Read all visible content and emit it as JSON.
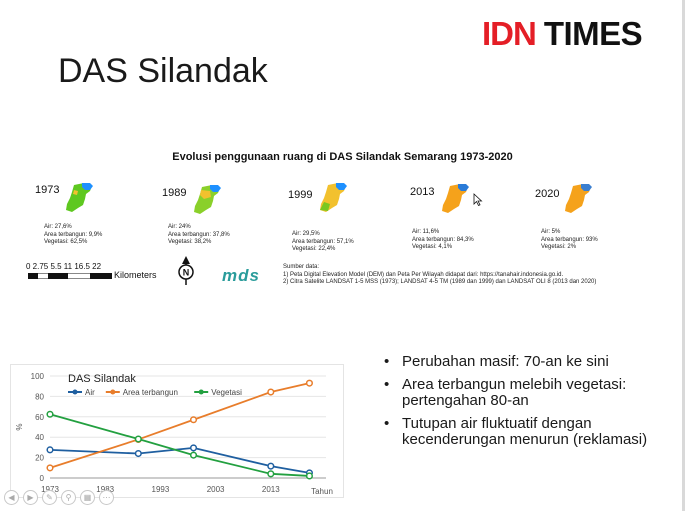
{
  "logo": {
    "part1": "IDN",
    "part2": "TIMES",
    "color": "#e41e26"
  },
  "slide_title": "DAS Silandak",
  "map_panel": {
    "title": "Evolusi penggunaan ruang di DAS Silandak Semarang 1973-2020",
    "maps": [
      {
        "year": "1973",
        "air": "Air: 27,6%",
        "built": "Area terbangun: 9,9%",
        "veg": "Vegetasi: 62,5%"
      },
      {
        "year": "1989",
        "air": "Air: 24%",
        "built": "Area terbangun: 37,8%",
        "veg": "Vegetasi: 38,2%"
      },
      {
        "year": "1999",
        "air": "Air: 29,5%",
        "built": "Area terbangun: 57,1%",
        "veg": "Vegetasi: 22,4%"
      },
      {
        "year": "2013",
        "air": "Air: 11,6%",
        "built": "Area terbangun: 84,3%",
        "veg": "Vegetasi: 4,1%"
      },
      {
        "year": "2020",
        "air": "Air: 5%",
        "built": "Area terbangun: 93%",
        "veg": "Vegetasi: 2%"
      }
    ],
    "scale_ticks": "0 2.75 5.5     11     16.5    22",
    "scale_unit": "Kilometers",
    "north_label": "N",
    "mds_logo": "mds",
    "sources_heading": "Sumber data:",
    "source_1": "1) Peta Digital Elevation Model (DEM) dan Peta Per Wilayah didapat dari: https://tanahair.indonesia.go.id.",
    "source_2": "2) Citra Satelite LANDSAT 1-5 MSS (1973); LANDSAT 4-5 TM (1989 dan 1999) dan LANDSAT OLI 8 (2013 dan 2020)"
  },
  "bullets": [
    "Perubahan masif: 70-an ke sini",
    "Area terbangun melebih vegetasi: pertengahan 80-an",
    "Tutupan air fluktuatif dengan kecenderungan menurun (reklamasi)"
  ],
  "chart_data": {
    "type": "line",
    "title": "DAS Silandak",
    "xlabel": "Tahun",
    "ylabel": "%",
    "x": [
      1973,
      1989,
      1999,
      2013,
      2020
    ],
    "xticks": [
      1973,
      1983,
      1993,
      2003,
      2013
    ],
    "xlim": [
      1973,
      2023
    ],
    "ylim": [
      0,
      100
    ],
    "yticks": [
      0,
      20,
      40,
      60,
      80,
      100
    ],
    "legend_position": "top-left",
    "series": [
      {
        "name": "Air",
        "color": "#1f5fa0",
        "values": [
          27.6,
          24,
          29.5,
          11.6,
          5
        ]
      },
      {
        "name": "Area terbangun",
        "color": "#e87d2b",
        "values": [
          9.9,
          37.8,
          57.1,
          84.3,
          93
        ]
      },
      {
        "name": "Vegetasi",
        "color": "#23a040",
        "values": [
          62.5,
          38.2,
          22.4,
          4.1,
          2
        ]
      }
    ]
  },
  "toolbar": [
    "back-icon",
    "play-icon",
    "pen-icon",
    "search-icon",
    "slides-icon",
    "more-icon"
  ]
}
